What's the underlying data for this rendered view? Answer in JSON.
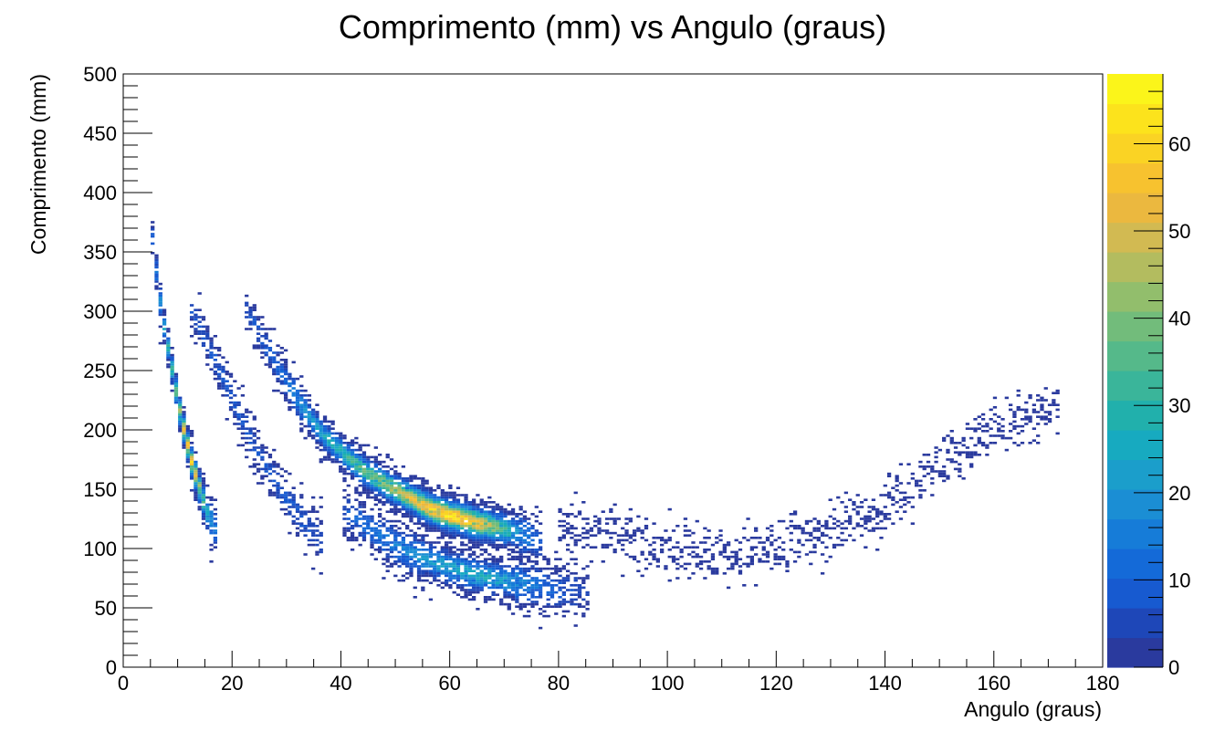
{
  "chart_data": {
    "type": "heatmap",
    "title": "Comprimento (mm) vs Angulo (graus)",
    "xlabel": "Angulo (graus)",
    "ylabel": "Comprimento (mm)",
    "xlim": [
      0,
      180
    ],
    "ylim": [
      0,
      500
    ],
    "x_ticks": [
      "0",
      "20",
      "40",
      "60",
      "80",
      "100",
      "120",
      "140",
      "160",
      "180"
    ],
    "y_ticks": [
      "0",
      "50",
      "100",
      "150",
      "200",
      "250",
      "300",
      "350",
      "400",
      "450",
      "500"
    ],
    "colorbar": {
      "range": [
        0,
        68
      ],
      "ticks": [
        "0",
        "10",
        "20",
        "30",
        "40",
        "50",
        "60"
      ],
      "colors": [
        "#2a3a9e",
        "#1e47b8",
        "#175ad0",
        "#146ad8",
        "#167cd8",
        "#1b8ed4",
        "#1b9ecb",
        "#17aac0",
        "#21b0ac",
        "#3ab59a",
        "#55b98a",
        "#72bc7b",
        "#92be6c",
        "#b3bc5f",
        "#d2ba52",
        "#ebb83f",
        "#f7c22f",
        "#fad324",
        "#fce31c",
        "#fbf51a"
      ]
    },
    "grid": false,
    "bands": [
      {
        "name": "",
        "points": [
          [
            5,
            360,
            8
          ],
          [
            6,
            320,
            14
          ],
          [
            7,
            290,
            22
          ],
          [
            8,
            265,
            30
          ],
          [
            9,
            240,
            36
          ],
          [
            10,
            215,
            44
          ],
          [
            11,
            195,
            52
          ],
          [
            12,
            175,
            58
          ],
          [
            13,
            160,
            50
          ],
          [
            14,
            145,
            40
          ],
          [
            15,
            130,
            28
          ],
          [
            16,
            120,
            18
          ],
          [
            17,
            112,
            10
          ]
        ]
      },
      {
        "name": "",
        "points": [
          [
            12,
            300,
            6
          ],
          [
            16,
            260,
            8
          ],
          [
            20,
            220,
            8
          ],
          [
            24,
            180,
            8
          ],
          [
            28,
            150,
            7
          ],
          [
            32,
            125,
            8
          ],
          [
            36,
            105,
            6
          ]
        ]
      },
      {
        "name": "",
        "points": [
          [
            22,
            300,
            6
          ],
          [
            28,
            250,
            10
          ],
          [
            32,
            220,
            18
          ],
          [
            36,
            195,
            24
          ],
          [
            40,
            178,
            30
          ],
          [
            44,
            163,
            36
          ],
          [
            48,
            152,
            42
          ],
          [
            52,
            142,
            50
          ],
          [
            56,
            132,
            56
          ],
          [
            60,
            126,
            62
          ],
          [
            64,
            121,
            56
          ],
          [
            68,
            117,
            40
          ],
          [
            72,
            112,
            20
          ],
          [
            76,
            105,
            8
          ]
        ]
      },
      {
        "name": "",
        "points": [
          [
            40,
            130,
            8
          ],
          [
            45,
            115,
            12
          ],
          [
            50,
            100,
            16
          ],
          [
            55,
            90,
            20
          ],
          [
            60,
            82,
            24
          ],
          [
            65,
            76,
            26
          ],
          [
            70,
            72,
            22
          ],
          [
            75,
            68,
            14
          ],
          [
            80,
            64,
            8
          ],
          [
            85,
            62,
            3
          ]
        ]
      },
      {
        "name": "",
        "points": [
          [
            80,
            118,
            2
          ],
          [
            90,
            112,
            1
          ],
          [
            100,
            100,
            1
          ],
          [
            110,
            92,
            1
          ],
          [
            120,
            100,
            1
          ],
          [
            130,
            115,
            1
          ],
          [
            140,
            135,
            1
          ],
          [
            150,
            170,
            1
          ],
          [
            160,
            200,
            1
          ],
          [
            172,
            220,
            1
          ]
        ]
      }
    ]
  }
}
